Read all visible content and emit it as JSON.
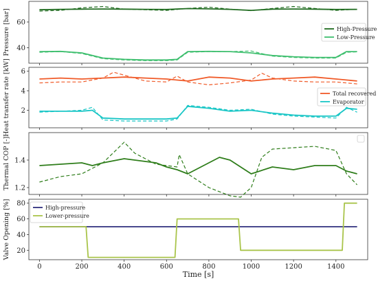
{
  "chart_data": [
    {
      "type": "line",
      "ylabel": "Pressure [bar]",
      "xlim": [
        -50,
        1550
      ],
      "ylim": [
        28,
        76
      ],
      "yticks": [
        40,
        60
      ],
      "grid": false,
      "legend": {
        "placement": "right"
      },
      "series": [
        {
          "name": "High-Pressure",
          "color": "#1f6b1f",
          "style": "solid",
          "x": [
            0,
            100,
            200,
            300,
            400,
            500,
            600,
            700,
            800,
            900,
            1000,
            1100,
            1200,
            1300,
            1400,
            1500
          ],
          "y": [
            69.5,
            69.8,
            70.0,
            70.1,
            70.0,
            69.8,
            69.7,
            70.4,
            70.2,
            69.8,
            69.0,
            70.0,
            70.1,
            70.0,
            69.7,
            69.8
          ]
        },
        {
          "name": "High-Pressure (dashed)",
          "color": "#1f6b1f",
          "style": "dashed",
          "x": [
            0,
            100,
            200,
            300,
            400,
            500,
            600,
            700,
            800,
            900,
            1000,
            1100,
            1200,
            1300,
            1400,
            1500
          ],
          "y": [
            68.5,
            69.0,
            71.0,
            72.0,
            70.0,
            69.5,
            69.0,
            70.5,
            71.5,
            70.0,
            68.8,
            70.5,
            72.0,
            70.5,
            69.0,
            70.0
          ]
        },
        {
          "name": "Low-Pressure",
          "color": "#3fbf6f",
          "style": "solid",
          "x": [
            0,
            100,
            200,
            300,
            400,
            500,
            600,
            650,
            700,
            800,
            900,
            1000,
            1100,
            1200,
            1300,
            1400,
            1450,
            1500
          ],
          "y": [
            37.0,
            37.2,
            36.0,
            32.0,
            31.0,
            30.5,
            30.5,
            31.0,
            37.0,
            37.2,
            37.0,
            36.0,
            34.0,
            33.0,
            32.5,
            32.5,
            37.0,
            37.0
          ]
        },
        {
          "name": "Low-Pressure (dashed)",
          "color": "#3fbf6f",
          "style": "dashed",
          "x": [
            0,
            100,
            200,
            300,
            400,
            500,
            600,
            650,
            700,
            800,
            900,
            1000,
            1100,
            1200,
            1300,
            1400,
            1450,
            1500
          ],
          "y": [
            36.5,
            37.0,
            35.5,
            31.5,
            30.5,
            30.0,
            30.0,
            30.5,
            36.5,
            37.0,
            37.0,
            37.5,
            33.5,
            32.5,
            32.0,
            32.0,
            36.5,
            36.8
          ]
        }
      ]
    },
    {
      "type": "line",
      "ylabel": "Heat transfer rate [kW]",
      "xlim": [
        -50,
        1550
      ],
      "ylim": [
        0.2,
        6.4
      ],
      "yticks": [
        2,
        4,
        6
      ],
      "grid": false,
      "legend": {
        "placement": "right"
      },
      "series": [
        {
          "name": "Total recovered",
          "color": "#f05a28",
          "style": "solid",
          "x": [
            0,
            100,
            200,
            300,
            400,
            500,
            600,
            650,
            700,
            800,
            900,
            1000,
            1100,
            1200,
            1300,
            1400,
            1500
          ],
          "y": [
            5.2,
            5.3,
            5.2,
            5.3,
            5.4,
            5.3,
            5.2,
            5.1,
            5.0,
            5.4,
            5.3,
            5.0,
            5.2,
            5.3,
            5.4,
            5.2,
            5.0
          ]
        },
        {
          "name": "Total recovered (dashed)",
          "color": "#f05a28",
          "style": "dashed",
          "x": [
            0,
            100,
            200,
            300,
            350,
            400,
            500,
            600,
            650,
            700,
            800,
            900,
            1000,
            1050,
            1100,
            1200,
            1300,
            1400,
            1500
          ],
          "y": [
            4.8,
            4.9,
            4.9,
            5.3,
            5.9,
            5.6,
            5.0,
            4.9,
            5.5,
            4.9,
            4.6,
            4.8,
            5.1,
            5.8,
            5.3,
            5.0,
            4.9,
            4.9,
            4.7
          ]
        },
        {
          "name": "Evaporator",
          "color": "#19c6c6",
          "style": "solid",
          "x": [
            0,
            100,
            200,
            250,
            300,
            400,
            500,
            600,
            650,
            700,
            800,
            900,
            1000,
            1100,
            1200,
            1300,
            1400,
            1450,
            1500
          ],
          "y": [
            1.9,
            1.9,
            1.9,
            2.0,
            1.2,
            1.1,
            1.1,
            1.1,
            1.2,
            2.4,
            2.2,
            1.9,
            2.0,
            1.7,
            1.5,
            1.4,
            1.4,
            2.2,
            2.1
          ]
        },
        {
          "name": "Evaporator (dashed)",
          "color": "#19c6c6",
          "style": "dashed",
          "x": [
            0,
            100,
            200,
            250,
            300,
            400,
            500,
            600,
            650,
            700,
            800,
            900,
            1000,
            1100,
            1200,
            1300,
            1400,
            1450,
            1500
          ],
          "y": [
            1.8,
            1.9,
            2.0,
            2.3,
            1.0,
            0.9,
            0.9,
            0.9,
            1.1,
            2.5,
            2.3,
            2.0,
            2.1,
            1.6,
            1.4,
            1.3,
            1.2,
            2.3,
            1.8
          ]
        }
      ]
    },
    {
      "type": "line",
      "ylabel": "Thermal COP [-]",
      "xlim": [
        -50,
        1550
      ],
      "ylim": [
        1.15,
        1.6
      ],
      "yticks": [
        1.2,
        1.4
      ],
      "grid": false,
      "legend": {
        "placement": "top-right"
      },
      "series": [
        {
          "name": "",
          "color": "#2e7d1a",
          "style": "solid",
          "x": [
            0,
            100,
            200,
            250,
            300,
            400,
            500,
            550,
            600,
            650,
            700,
            800,
            850,
            900,
            1000,
            1100,
            1200,
            1300,
            1400,
            1450,
            1500
          ],
          "y": [
            1.36,
            1.37,
            1.38,
            1.36,
            1.38,
            1.41,
            1.39,
            1.38,
            1.35,
            1.33,
            1.3,
            1.38,
            1.42,
            1.4,
            1.3,
            1.35,
            1.33,
            1.36,
            1.36,
            1.32,
            1.3
          ]
        },
        {
          "name": "",
          "color": "#2e7d1a",
          "style": "dashed",
          "x": [
            0,
            100,
            200,
            300,
            400,
            450,
            550,
            650,
            660,
            700,
            800,
            900,
            950,
            1000,
            1050,
            1100,
            1200,
            1300,
            1400,
            1450,
            1500
          ],
          "y": [
            1.24,
            1.28,
            1.3,
            1.38,
            1.53,
            1.45,
            1.37,
            1.35,
            1.44,
            1.3,
            1.2,
            1.14,
            1.13,
            1.2,
            1.42,
            1.48,
            1.49,
            1.5,
            1.47,
            1.3,
            1.22
          ]
        }
      ]
    },
    {
      "type": "line",
      "xlabel": "Time [s]",
      "ylabel": "Valve Opening [%]",
      "xlim": [
        -50,
        1550
      ],
      "ylim": [
        8,
        85
      ],
      "yticks": [
        20,
        40,
        60,
        80
      ],
      "xticks": [
        0,
        200,
        400,
        600,
        800,
        1000,
        1200,
        1400
      ],
      "grid": false,
      "legend": {
        "placement": "top-left"
      },
      "series": [
        {
          "name": "High-pressure",
          "color": "#2e2e7d",
          "style": "solid",
          "x": [
            0,
            1500
          ],
          "y": [
            50,
            50
          ]
        },
        {
          "name": "Lower-pressure",
          "color": "#a9c44a",
          "style": "solid",
          "x": [
            0,
            220,
            230,
            640,
            650,
            940,
            950,
            1430,
            1440,
            1500
          ],
          "y": [
            50,
            50,
            11,
            11,
            60,
            60,
            20,
            20,
            80,
            80
          ]
        }
      ]
    }
  ]
}
